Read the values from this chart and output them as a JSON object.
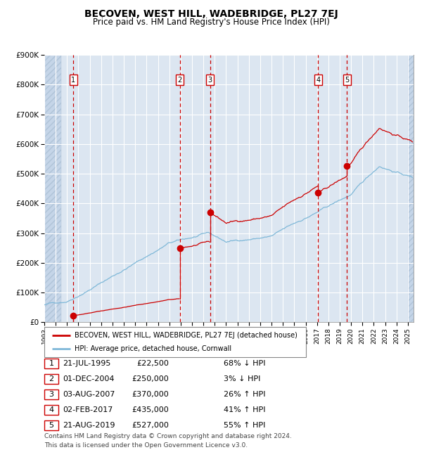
{
  "title": "BECOVEN, WEST HILL, WADEBRIDGE, PL27 7EJ",
  "subtitle": "Price paid vs. HM Land Registry's House Price Index (HPI)",
  "ylim": [
    0,
    900000
  ],
  "yticks": [
    0,
    100000,
    200000,
    300000,
    400000,
    500000,
    600000,
    700000,
    800000,
    900000
  ],
  "ytick_labels": [
    "£0",
    "£100K",
    "£200K",
    "£300K",
    "£400K",
    "£500K",
    "£600K",
    "£700K",
    "£800K",
    "£900K"
  ],
  "xlim_start": 1993.0,
  "xlim_end": 2025.5,
  "background_color": "#dce6f1",
  "hatch_color": "#c5d5e8",
  "grid_color": "#ffffff",
  "hpi_line_color": "#7fb8d8",
  "price_line_color": "#cc0000",
  "dot_color": "#cc0000",
  "vline_color": "#cc0000",
  "purchases": [
    {
      "num": 1,
      "date_label": "21-JUL-1995",
      "price": 22500,
      "pct": "68%",
      "dir": "↓",
      "x_year": 1995.55
    },
    {
      "num": 2,
      "date_label": "01-DEC-2004",
      "price": 250000,
      "pct": "3%",
      "dir": "↓",
      "x_year": 2004.92
    },
    {
      "num": 3,
      "date_label": "03-AUG-2007",
      "price": 370000,
      "pct": "26%",
      "dir": "↑",
      "x_year": 2007.59
    },
    {
      "num": 4,
      "date_label": "02-FEB-2017",
      "price": 435000,
      "pct": "41%",
      "dir": "↑",
      "x_year": 2017.09
    },
    {
      "num": 5,
      "date_label": "21-AUG-2019",
      "price": 527000,
      "pct": "55%",
      "dir": "↑",
      "x_year": 2019.64
    }
  ],
  "footer1": "Contains HM Land Registry data © Crown copyright and database right 2024.",
  "footer2": "This data is licensed under the Open Government Licence v3.0.",
  "legend_line1": "BECOVEN, WEST HILL, WADEBRIDGE, PL27 7EJ (detached house)",
  "legend_line2": "HPI: Average price, detached house, Cornwall",
  "table_rows": [
    [
      "1",
      "21-JUL-1995",
      "£22,500",
      "68% ↓ HPI"
    ],
    [
      "2",
      "01-DEC-2004",
      "£250,000",
      "3% ↓ HPI"
    ],
    [
      "3",
      "03-AUG-2007",
      "£370,000",
      "26% ↑ HPI"
    ],
    [
      "4",
      "02-FEB-2017",
      "£435,000",
      "41% ↑ HPI"
    ],
    [
      "5",
      "21-AUG-2019",
      "£527,000",
      "55% ↑ HPI"
    ]
  ]
}
